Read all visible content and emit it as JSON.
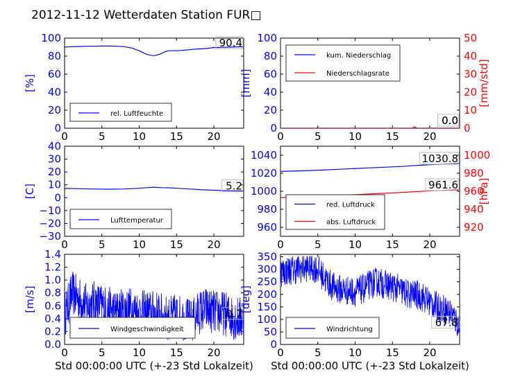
{
  "title": "2012-11-12 Wetterdaten Station FUR□",
  "chart_data": [
    {
      "type": "line",
      "panel": "top-left",
      "ylabel": "[%]",
      "xlabel": "",
      "xlim": [
        0,
        24
      ],
      "ylim": [
        0,
        100
      ],
      "xticks": [
        "0",
        "5",
        "10",
        "15",
        "20"
      ],
      "yticks": [
        "0",
        "20",
        "40",
        "60",
        "80",
        "100"
      ],
      "series": [
        {
          "name": "rel. Luftfeuchte",
          "color": "#0000ff",
          "points": [
            [
              0,
              90
            ],
            [
              1,
              90.5
            ],
            [
              2,
              90.7
            ],
            [
              3,
              91
            ],
            [
              4,
              91
            ],
            [
              5,
              91.2
            ],
            [
              6,
              91.3
            ],
            [
              7,
              91
            ],
            [
              8,
              90.5
            ],
            [
              9,
              89
            ],
            [
              10,
              86
            ],
            [
              10.5,
              84
            ],
            [
              11,
              82
            ],
            [
              11.5,
              81
            ],
            [
              12,
              80.5
            ],
            [
              12.5,
              81.5
            ],
            [
              13,
              83
            ],
            [
              13.5,
              85
            ],
            [
              14,
              86
            ],
            [
              15,
              86
            ],
            [
              16,
              86.5
            ],
            [
              17,
              87.5
            ],
            [
              18,
              88
            ],
            [
              19,
              88.5
            ],
            [
              20,
              89.5
            ],
            [
              21,
              89.8
            ],
            [
              22,
              90
            ],
            [
              23,
              90.3
            ],
            [
              24,
              90.4
            ]
          ]
        }
      ],
      "last_value_label": "90.4",
      "legend_location": "lower-left"
    },
    {
      "type": "line",
      "panel": "top-right",
      "ylabel": "[mm]",
      "ylabel_right": "[mm/std]",
      "xlabel": "",
      "xlim": [
        0,
        24
      ],
      "ylim": [
        0,
        100
      ],
      "ylim_right": [
        0,
        50
      ],
      "xticks": [
        "0",
        "5",
        "10",
        "15",
        "20"
      ],
      "yticks": [
        "0",
        "20",
        "40",
        "60",
        "80",
        "100"
      ],
      "yticks_right": [
        "0",
        "10",
        "20",
        "30",
        "40",
        "50"
      ],
      "series": [
        {
          "name": "kum. Niederschlag",
          "color": "#0000ff",
          "axis": "left",
          "points": [
            [
              0,
              0
            ],
            [
              24,
              0
            ]
          ]
        },
        {
          "name": "Niederschlagsrate",
          "color": "#ff0000",
          "axis": "right",
          "points": [
            [
              0,
              0
            ],
            [
              17.6,
              0
            ],
            [
              18,
              0.8
            ],
            [
              18.3,
              0
            ],
            [
              24,
              0
            ]
          ]
        }
      ],
      "last_value_labels": [
        "0.0",
        "0.0"
      ],
      "legend_location": "upper-left"
    },
    {
      "type": "line",
      "panel": "middle-left",
      "ylabel": "[C]",
      "xlabel": "",
      "xlim": [
        0,
        24
      ],
      "ylim": [
        -30,
        40
      ],
      "xticks": [
        "0",
        "5",
        "10",
        "15",
        "20"
      ],
      "yticks": [
        "−30",
        "−20",
        "−10",
        "0",
        "10",
        "20",
        "30",
        "40"
      ],
      "series": [
        {
          "name": "Lufttemperatur",
          "color": "#0000ff",
          "points": [
            [
              0,
              7.2
            ],
            [
              2,
              7
            ],
            [
              4,
              6.8
            ],
            [
              6,
              6.6
            ],
            [
              8,
              6.8
            ],
            [
              10,
              7.3
            ],
            [
              11,
              7.8
            ],
            [
              12,
              8.2
            ],
            [
              13,
              7.8
            ],
            [
              14,
              7.7
            ],
            [
              15,
              7.3
            ],
            [
              16,
              7
            ],
            [
              17,
              6.7
            ],
            [
              18,
              6.3
            ],
            [
              19,
              6
            ],
            [
              20,
              5.8
            ],
            [
              21,
              5.6
            ],
            [
              22,
              5.4
            ],
            [
              24,
              5.2
            ]
          ]
        }
      ],
      "last_value_label": "5.2",
      "legend_location": "lower-left"
    },
    {
      "type": "line",
      "panel": "middle-right",
      "ylabel": "",
      "ylabel_right": "[hPa]",
      "xlabel": "",
      "xlim": [
        0,
        24
      ],
      "ylim": [
        950,
        1050
      ],
      "ylim_right": [
        910,
        1010
      ],
      "xticks": [
        "0",
        "5",
        "10",
        "15",
        "20"
      ],
      "yticks": [
        "960",
        "980",
        "1000",
        "1020",
        "1040"
      ],
      "yticks_right": [
        "920",
        "940",
        "960",
        "980",
        "1000"
      ],
      "series": [
        {
          "name": "red. Luftdruck",
          "color": "#0000ff",
          "axis": "left",
          "points": [
            [
              0,
              1022
            ],
            [
              4,
              1023
            ],
            [
              8,
              1024.5
            ],
            [
              12,
              1026
            ],
            [
              16,
              1027.5
            ],
            [
              20,
              1029.5
            ],
            [
              24,
              1030.8
            ]
          ]
        },
        {
          "name": "abs. Luftdruck",
          "color": "#ff0000",
          "axis": "right",
          "points": [
            [
              0,
              953
            ],
            [
              4,
              954
            ],
            [
              8,
              955.5
            ],
            [
              12,
              957
            ],
            [
              16,
              958.5
            ],
            [
              20,
              960.5
            ],
            [
              24,
              961.6
            ]
          ]
        }
      ],
      "last_value_labels": [
        "1030.8",
        "961.6"
      ],
      "legend_location": "lower-left"
    },
    {
      "type": "line",
      "panel": "bottom-left",
      "ylabel": "[m/s]",
      "xlabel": "Std 00:00:00 UTC (+-23 Std Lokalzeit)",
      "xlim": [
        0,
        24
      ],
      "ylim": [
        0,
        1.4
      ],
      "xticks": [
        "0",
        "5",
        "10",
        "15",
        "20"
      ],
      "yticks": [
        "0.0",
        "0.2",
        "0.4",
        "0.6",
        "0.8",
        "1.0",
        "1.2",
        "1.4"
      ],
      "series": [
        {
          "name": "Windgeschwindigkeit",
          "color": "#0000ff",
          "trend": [
            [
              0,
              0.45
            ],
            [
              1,
              0.8
            ],
            [
              2,
              0.7
            ],
            [
              3,
              0.6
            ],
            [
              4,
              0.65
            ],
            [
              5,
              0.6
            ],
            [
              6,
              0.55
            ],
            [
              7,
              0.5
            ],
            [
              8,
              0.55
            ],
            [
              9,
              0.55
            ],
            [
              10,
              0.5
            ],
            [
              11,
              0.5
            ],
            [
              12,
              0.5
            ],
            [
              13,
              0.45
            ],
            [
              14,
              0.4
            ],
            [
              15,
              0.45
            ],
            [
              16,
              0.4
            ],
            [
              17,
              0.35
            ],
            [
              18,
              0.5
            ],
            [
              19,
              0.55
            ],
            [
              20,
              0.5
            ],
            [
              21,
              0.5
            ],
            [
              22,
              0.45
            ],
            [
              23,
              0.4
            ],
            [
              24,
              0.4
            ]
          ],
          "spread": 0.35
        }
      ],
      "last_value_label": "0.7",
      "legend_location": "lower-left"
    },
    {
      "type": "line",
      "panel": "bottom-right",
      "ylabel": "[deg]",
      "xlabel": "Std 00:00:00 UTC (+-23 Std Lokalzeit)",
      "xlim": [
        0,
        24
      ],
      "ylim": [
        0,
        360
      ],
      "xticks": [
        "0",
        "5",
        "10",
        "15",
        "20"
      ],
      "yticks": [
        "0",
        "50",
        "100",
        "150",
        "200",
        "250",
        "300",
        "350"
      ],
      "series": [
        {
          "name": "Windrichtung",
          "color": "#0000ff",
          "trend": [
            [
              0,
              290
            ],
            [
              1,
              295
            ],
            [
              2,
              300
            ],
            [
              3,
              305
            ],
            [
              4,
              310
            ],
            [
              5,
              300
            ],
            [
              6,
              260
            ],
            [
              7,
              230
            ],
            [
              8,
              220
            ],
            [
              9,
              215
            ],
            [
              10,
              210
            ],
            [
              11,
              220
            ],
            [
              12,
              240
            ],
            [
              13,
              250
            ],
            [
              14,
              240
            ],
            [
              15,
              230
            ],
            [
              16,
              220
            ],
            [
              17,
              200
            ],
            [
              18,
              200
            ],
            [
              19,
              190
            ],
            [
              20,
              170
            ],
            [
              21,
              150
            ],
            [
              22,
              140
            ],
            [
              23,
              120
            ],
            [
              24,
              68
            ]
          ],
          "spread": 60
        }
      ],
      "last_value_label": "67.8",
      "legend_location": "lower-left"
    }
  ]
}
